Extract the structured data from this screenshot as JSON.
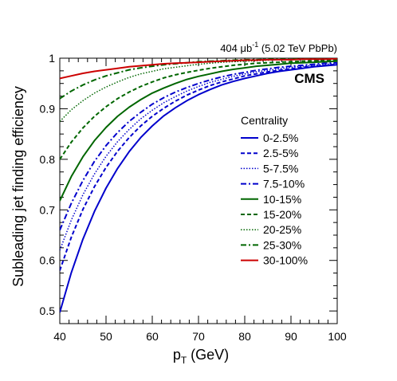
{
  "chart_data": {
    "type": "line",
    "xlabel": {
      "main": "p",
      "sub": "T",
      "rest": " (GeV)"
    },
    "ylabel": "Subleading jet finding efficiency",
    "xlim": [
      40,
      100
    ],
    "ylim": [
      0.475,
      1.0
    ],
    "x_ticks": [
      "40",
      "50",
      "60",
      "70",
      "80",
      "90",
      "100"
    ],
    "y_ticks": [
      "0.5",
      "0.6",
      "0.7",
      "0.8",
      "0.9",
      "1"
    ],
    "header": {
      "lumi": "404 μb",
      "exp": "-1",
      "rest": " (5.02 TeV PbPb)"
    },
    "logo": "CMS",
    "legend_title": "Centrality",
    "legend_position": "right",
    "x": [
      40,
      42.5,
      45,
      47.5,
      50,
      52.5,
      55,
      57.5,
      60,
      62.5,
      65,
      67.5,
      70,
      72.5,
      75,
      77.5,
      80,
      82.5,
      85,
      87.5,
      90,
      92.5,
      95,
      97.5,
      100
    ],
    "series": [
      {
        "name": "0-2.5%",
        "color": "#0000cc",
        "dash": "solid",
        "width": 2,
        "values": [
          0.497,
          0.576,
          0.642,
          0.697,
          0.743,
          0.782,
          0.815,
          0.843,
          0.866,
          0.886,
          0.902,
          0.916,
          0.928,
          0.938,
          0.947,
          0.954,
          0.96,
          0.965,
          0.97,
          0.974,
          0.977,
          0.98,
          0.983,
          0.985,
          0.987
        ]
      },
      {
        "name": "2.5-5%",
        "color": "#0000cc",
        "dash": "dashed",
        "width": 2,
        "values": [
          0.58,
          0.646,
          0.701,
          0.746,
          0.784,
          0.816,
          0.843,
          0.866,
          0.885,
          0.901,
          0.915,
          0.927,
          0.937,
          0.946,
          0.953,
          0.959,
          0.965,
          0.969,
          0.973,
          0.976,
          0.979,
          0.982,
          0.984,
          0.986,
          0.988
        ]
      },
      {
        "name": "5-7.5%",
        "color": "#0000cc",
        "dash": "dotted",
        "width": 1.5,
        "values": [
          0.62,
          0.68,
          0.73,
          0.771,
          0.806,
          0.835,
          0.859,
          0.88,
          0.897,
          0.912,
          0.924,
          0.935,
          0.944,
          0.952,
          0.958,
          0.964,
          0.969,
          0.973,
          0.976,
          0.979,
          0.982,
          0.984,
          0.986,
          0.988,
          0.989
        ]
      },
      {
        "name": "7.5-10%",
        "color": "#0000cc",
        "dash": "dashdot",
        "width": 2,
        "values": [
          0.66,
          0.713,
          0.758,
          0.796,
          0.827,
          0.853,
          0.875,
          0.893,
          0.909,
          0.922,
          0.933,
          0.942,
          0.95,
          0.957,
          0.963,
          0.968,
          0.972,
          0.976,
          0.979,
          0.982,
          0.984,
          0.986,
          0.988,
          0.99,
          0.991
        ]
      },
      {
        "name": "10-15%",
        "color": "#006600",
        "dash": "solid",
        "width": 2,
        "values": [
          0.718,
          0.766,
          0.805,
          0.837,
          0.863,
          0.885,
          0.903,
          0.918,
          0.931,
          0.941,
          0.95,
          0.958,
          0.964,
          0.969,
          0.974,
          0.978,
          0.981,
          0.984,
          0.986,
          0.988,
          0.99,
          0.991,
          0.992,
          0.993,
          0.994
        ]
      },
      {
        "name": "15-20%",
        "color": "#006600",
        "dash": "dashed",
        "width": 2,
        "values": [
          0.8,
          0.834,
          0.862,
          0.885,
          0.904,
          0.92,
          0.933,
          0.944,
          0.953,
          0.961,
          0.967,
          0.972,
          0.976,
          0.98,
          0.983,
          0.986,
          0.988,
          0.99,
          0.991,
          0.992,
          0.993,
          0.994,
          0.995,
          0.996,
          0.996
        ]
      },
      {
        "name": "20-25%",
        "color": "#006600",
        "dash": "dotted",
        "width": 1.5,
        "values": [
          0.875,
          0.898,
          0.916,
          0.931,
          0.943,
          0.953,
          0.962,
          0.969,
          0.974,
          0.979,
          0.982,
          0.985,
          0.988,
          0.99,
          0.992,
          0.993,
          0.994,
          0.995,
          0.996,
          0.997,
          0.997,
          0.998,
          0.998,
          0.998,
          0.999
        ]
      },
      {
        "name": "25-30%",
        "color": "#006600",
        "dash": "dashdot",
        "width": 2,
        "values": [
          0.92,
          0.935,
          0.947,
          0.957,
          0.965,
          0.971,
          0.977,
          0.981,
          0.984,
          0.987,
          0.989,
          0.991,
          0.993,
          0.994,
          0.995,
          0.996,
          0.997,
          0.997,
          0.998,
          0.998,
          0.998,
          0.999,
          0.999,
          0.999,
          0.999
        ]
      },
      {
        "name": "30-100%",
        "color": "#cc0000",
        "dash": "solid",
        "width": 2,
        "values": [
          0.96,
          0.965,
          0.97,
          0.974,
          0.977,
          0.98,
          0.983,
          0.985,
          0.987,
          0.989,
          0.99,
          0.991,
          0.992,
          0.993,
          0.994,
          0.995,
          0.996,
          0.996,
          0.997,
          0.997,
          0.997,
          0.998,
          0.998,
          0.998,
          0.999
        ]
      }
    ]
  }
}
